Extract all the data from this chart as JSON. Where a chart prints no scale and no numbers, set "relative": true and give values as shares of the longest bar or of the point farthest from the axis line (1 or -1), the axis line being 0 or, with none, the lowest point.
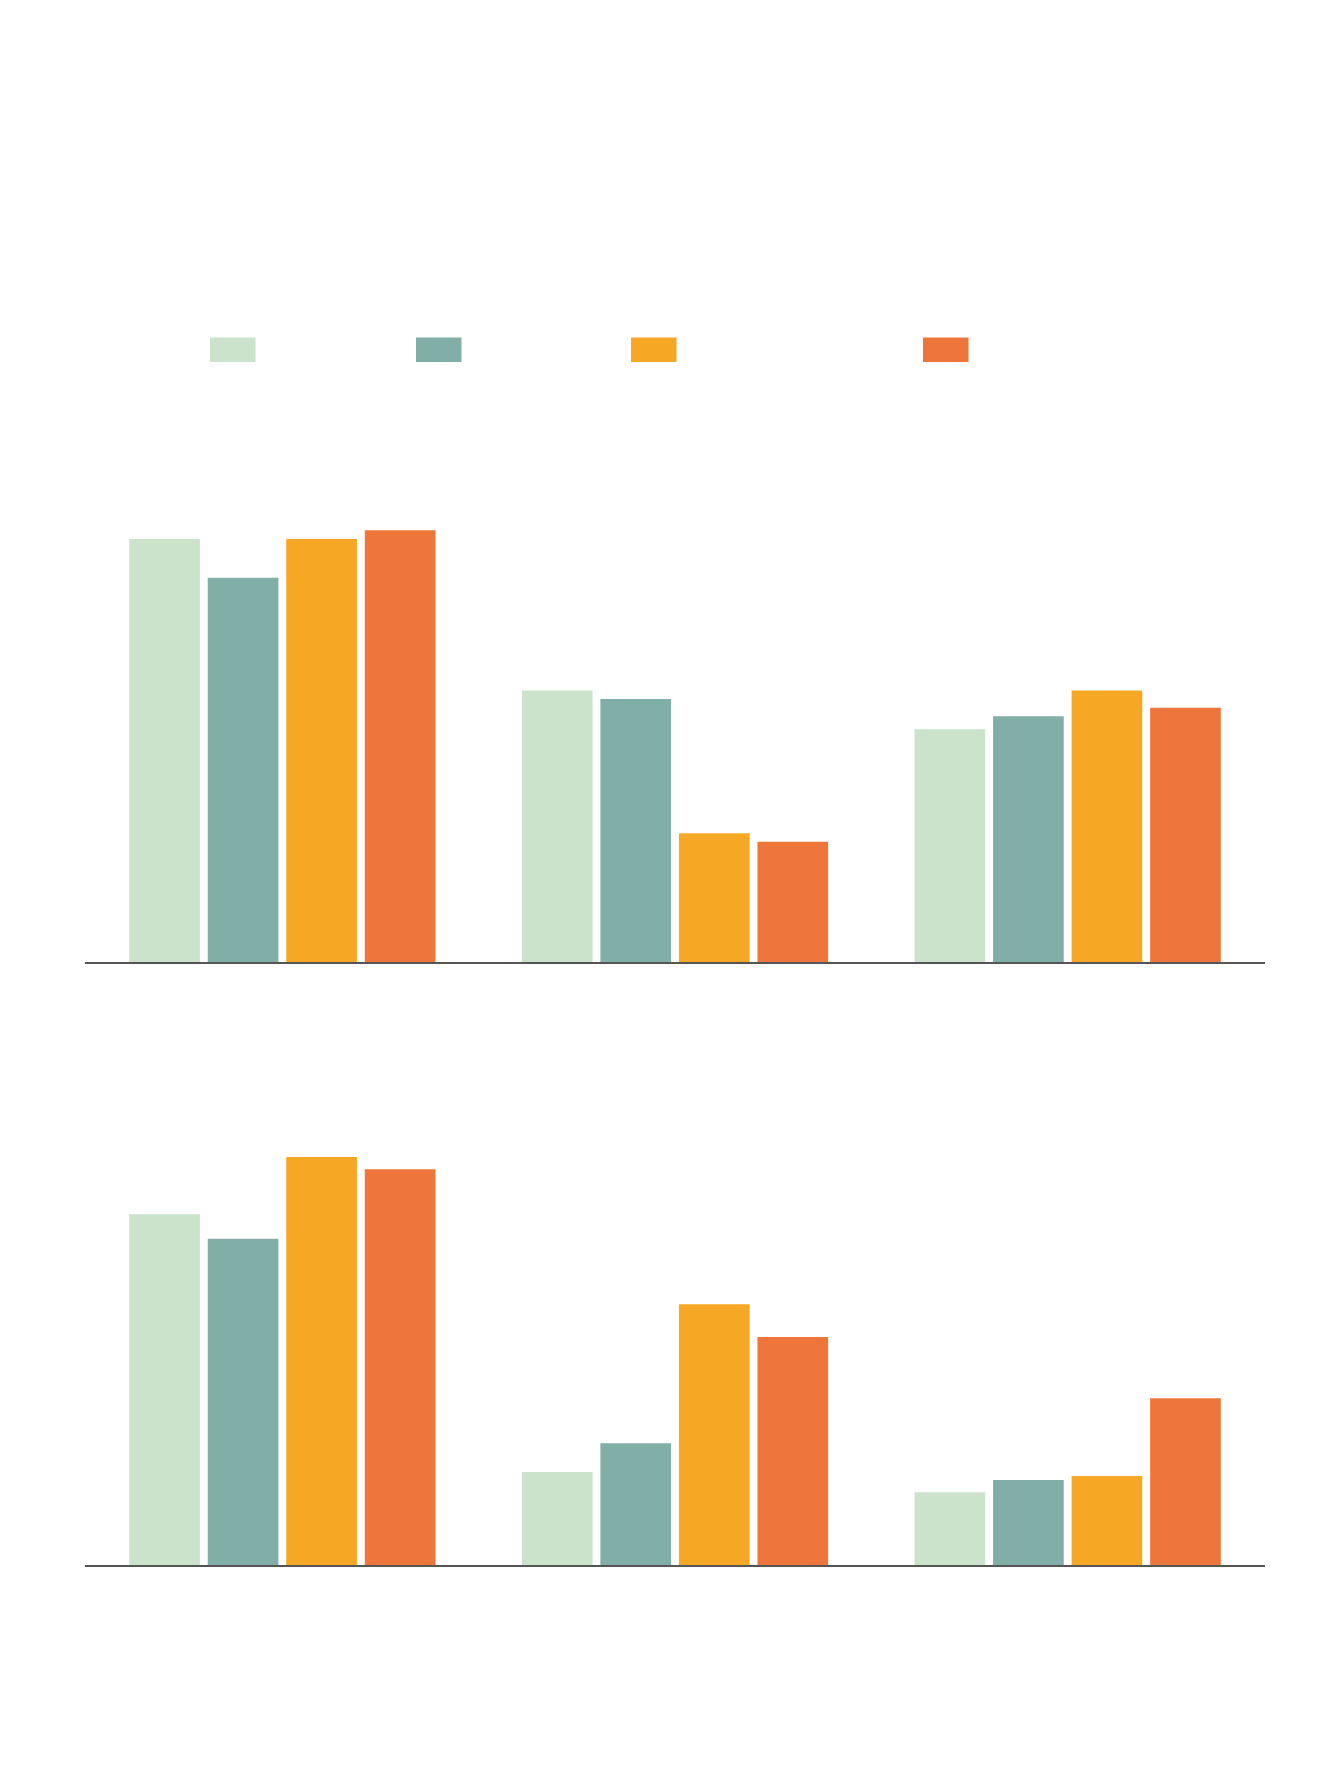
{
  "chart_data": [
    {
      "type": "bar",
      "categories": [
        null,
        null,
        null
      ],
      "relative": true,
      "series": [
        {
          "color": "#cbe3cb",
          "values": [
            0.98,
            0.63,
            0.54
          ]
        },
        {
          "color": "#82aea8",
          "values": [
            0.89,
            0.61,
            0.57
          ]
        },
        {
          "color": "#f6a824",
          "values": [
            0.98,
            0.3,
            0.63
          ]
        },
        {
          "color": "#ee763a",
          "values": [
            1.0,
            0.28,
            0.59
          ]
        }
      ]
    },
    {
      "type": "bar",
      "categories": [
        null,
        null,
        null
      ],
      "relative": true,
      "series": [
        {
          "color": "#cbe3cb",
          "values": [
            0.86,
            0.23,
            0.18
          ]
        },
        {
          "color": "#82aea8",
          "values": [
            0.8,
            0.3,
            0.21
          ]
        },
        {
          "color": "#f6a824",
          "values": [
            1.0,
            0.64,
            0.22
          ]
        },
        {
          "color": "#ee763a",
          "values": [
            0.97,
            0.56,
            0.41
          ]
        }
      ]
    }
  ]
}
